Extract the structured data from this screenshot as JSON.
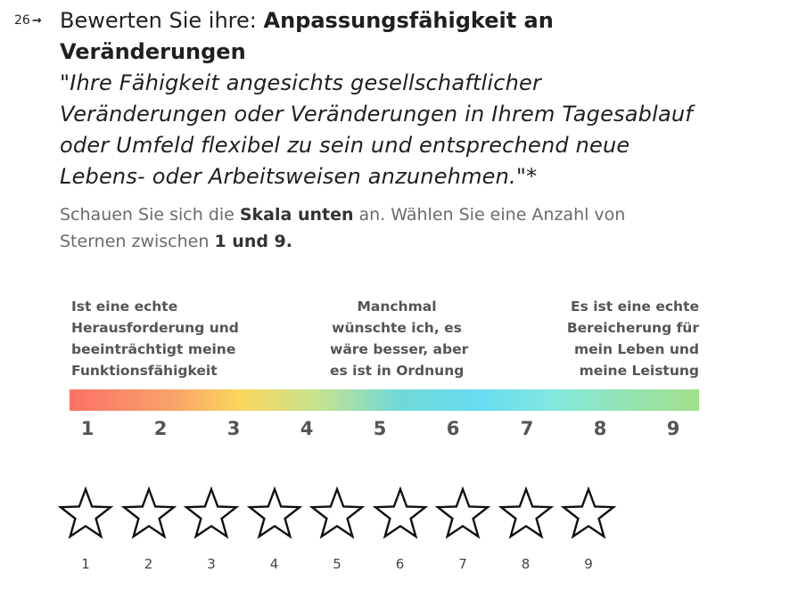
{
  "question": {
    "number": "26",
    "arrow": "→",
    "title_prefix": "Bewerten Sie ihre: ",
    "title_strong_1": "Anpassungsfähigkeit an",
    "title_strong_2": "Veränderungen",
    "quote_lines": [
      "\"Ihre Fähigkeit angesichts gesellschaftlicher",
      "Veränderungen oder Veränderungen in Ihrem Tagesablauf",
      "oder Umfeld flexibel zu sein und entsprechend neue",
      "Lebens- oder Arbeitsweisen anzunehmen.\""
    ],
    "required_marker": "*",
    "desc_part1": "Schauen Sie sich die ",
    "desc_bold1": "Skala unten",
    "desc_part2": " an. Wählen Sie eine Anzahl von",
    "desc_part3": "Sternen zwischen ",
    "desc_bold2": "1 und 9."
  },
  "scale": {
    "left_label": [
      "Ist eine echte",
      "Herausforderung und",
      "beeinträchtigt meine",
      "Funktionsfähigkeit"
    ],
    "mid_label": [
      "Manchmal",
      "wünschte ich, es",
      "wäre besser, aber",
      "es ist in Ordnung"
    ],
    "right_label": [
      "Es ist eine echte",
      "Bereicherung für",
      "mein Leben und",
      "meine Leistung"
    ],
    "numbers": [
      "1",
      "2",
      "3",
      "4",
      "5",
      "6",
      "7",
      "8",
      "9"
    ]
  },
  "rating": {
    "star_labels": [
      "1",
      "2",
      "3",
      "4",
      "5",
      "6",
      "7",
      "8",
      "9"
    ],
    "selected": 0,
    "star_stroke_color": "#111111",
    "star_fill_color": "#ffffff"
  }
}
